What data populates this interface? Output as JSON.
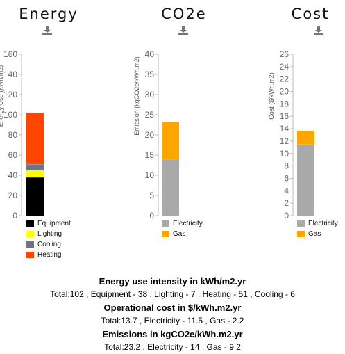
{
  "chart_data": [
    {
      "type": "bar",
      "stacked": true,
      "title": "Energy",
      "ylabel": "Energy Use (kWh/m2)",
      "ylim": [
        0,
        160
      ],
      "yticks": [
        0,
        20,
        40,
        60,
        80,
        100,
        120,
        140,
        160
      ],
      "series": [
        {
          "name": "Equipment",
          "values": [
            38
          ],
          "color": "#000000"
        },
        {
          "name": "Lighting",
          "values": [
            7
          ],
          "color": "#ffff00"
        },
        {
          "name": "Cooling",
          "values": [
            6
          ],
          "color": "#6e7485"
        },
        {
          "name": "Heating",
          "values": [
            51
          ],
          "color": "#ff4500"
        }
      ],
      "grid": false,
      "legend": "bottom"
    },
    {
      "type": "bar",
      "stacked": true,
      "title": "CO2e",
      "ylabel": "Emission (kgCO2e/kWh.m2)",
      "ylim": [
        0,
        40
      ],
      "yticks": [
        0,
        5,
        10,
        15,
        20,
        25,
        30,
        35,
        40
      ],
      "series": [
        {
          "name": "Electricity",
          "values": [
            14
          ],
          "color": "#a9a9a9"
        },
        {
          "name": "Gas",
          "values": [
            9.2
          ],
          "color": "#ffa500"
        }
      ],
      "grid": false,
      "legend": "bottom"
    },
    {
      "type": "bar",
      "stacked": true,
      "title": "Cost",
      "ylabel": "Cost ($/kWh.m2)",
      "ylim": [
        0,
        26
      ],
      "yticks": [
        0,
        2,
        4,
        6,
        8,
        10,
        12,
        14,
        16,
        18,
        20,
        22,
        24,
        26
      ],
      "series": [
        {
          "name": "Electricity",
          "values": [
            11.5
          ],
          "color": "#a9a9a9"
        },
        {
          "name": "Gas",
          "values": [
            2.2
          ],
          "color": "#ffa500"
        }
      ],
      "grid": false,
      "legend": "bottom"
    }
  ],
  "summary": {
    "energy_title": "Energy use intensity in kWh/m2.yr",
    "energy_line": "Total:102 , Equipment - 38 , Lighting - 7 , Heating - 51 , Cooling - 6",
    "cost_title": "Operational cost in $/kWh.m2.yr",
    "cost_line": "Total:13.7 , Electricity - 11.5 , Gas - 2.2",
    "emission_title": "Emissions in kgCO2e/kWh.m2.yr",
    "emission_line": "Total:23.2 , Electricity - 14 , Gas - 9.2"
  },
  "icons": {
    "download": "download-icon"
  }
}
